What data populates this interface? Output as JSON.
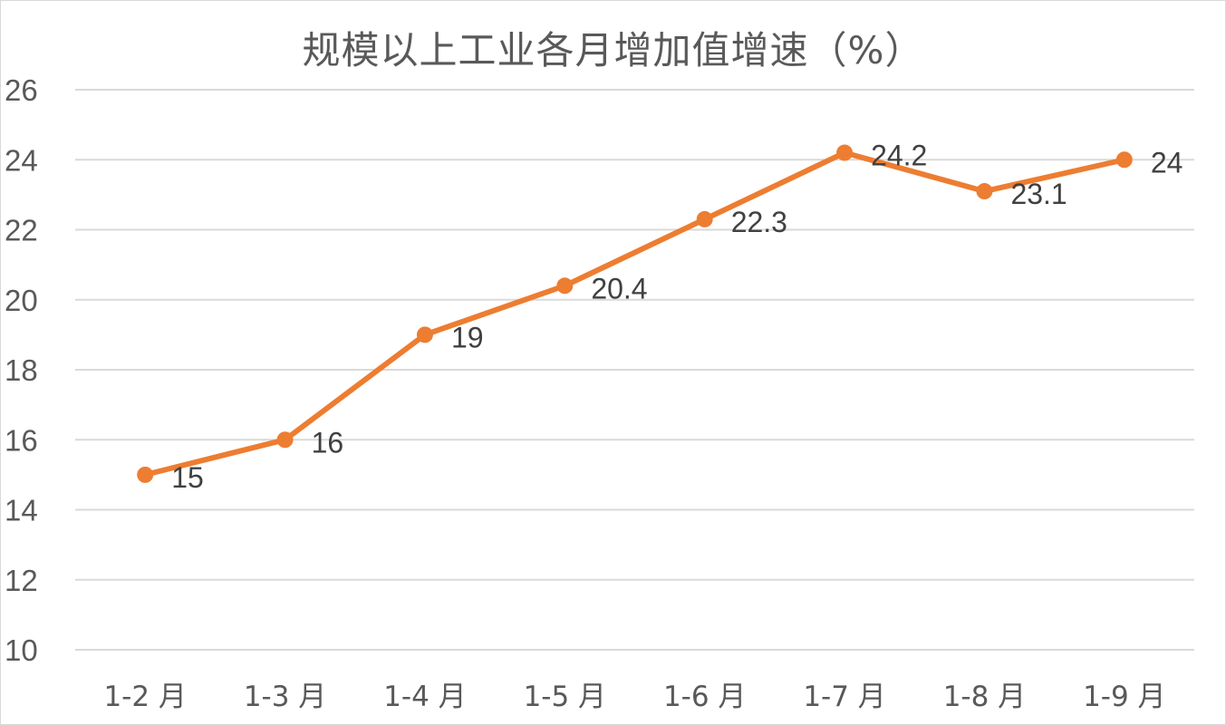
{
  "chart_data": {
    "type": "line",
    "title": "规模以上工业各月增加值增速（%）",
    "categories": [
      "1-2 月",
      "1-3 月",
      "1-4 月",
      "1-5 月",
      "1-6 月",
      "1-7 月",
      "1-8 月",
      "1-9 月"
    ],
    "values": [
      15,
      16,
      19,
      20.4,
      22.3,
      24.2,
      23.1,
      24
    ],
    "data_labels": [
      "15",
      "16",
      "19",
      "20.4",
      "22.3",
      "24.2",
      "23.1",
      "24"
    ],
    "ylim": [
      10,
      26
    ],
    "yticks": [
      10,
      12,
      14,
      16,
      18,
      20,
      22,
      24,
      26
    ],
    "ytick_labels": [
      "10",
      "12",
      "14",
      "16",
      "18",
      "20",
      "22",
      "24",
      "26"
    ],
    "grid": true,
    "legend": "none",
    "colors": {
      "line": "#ED7D31",
      "grid": "#d9d9d9",
      "text": "#595959",
      "data_label": "#404040"
    }
  }
}
